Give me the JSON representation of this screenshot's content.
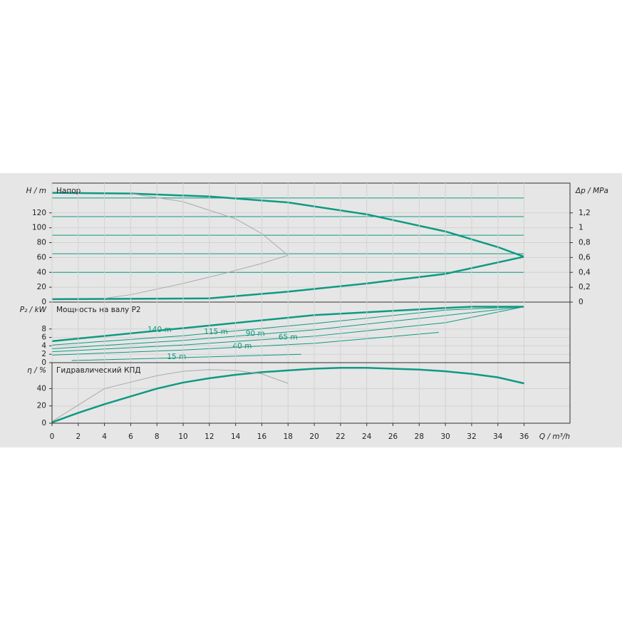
{
  "chart_data": [
    {
      "type": "line",
      "title": "Напор",
      "ylabel": "H / m",
      "y2label": "Δp / MPa",
      "xlim": [
        0,
        39.5
      ],
      "ylim": [
        0,
        160
      ],
      "yticks": [
        0,
        20,
        40,
        60,
        80,
        100,
        120
      ],
      "y2lim": [
        0,
        1.6
      ],
      "y2ticks": [
        0,
        {
          "value": 0.2,
          "label": "0,2"
        },
        {
          "value": 0.4,
          "label": "0,4"
        },
        {
          "value": 0.6,
          "label": "0,6"
        },
        {
          "value": 0.8,
          "label": "0,8"
        },
        {
          "value": 1,
          "label": "1"
        },
        {
          "value": 1.2,
          "label": "1,2"
        }
      ],
      "grid": true,
      "series": [
        {
          "color": "#0e9a82",
          "width": 2.5,
          "x": [
            0,
            6,
            12,
            18,
            24,
            30,
            34,
            36
          ],
          "values": [
            147,
            146,
            142,
            134,
            118,
            95,
            74,
            61
          ]
        },
        {
          "color": "#0e9a82",
          "width": 2.5,
          "x": [
            0,
            12,
            18,
            24,
            30,
            36
          ],
          "values": [
            4,
            5,
            14,
            25,
            38,
            61
          ]
        },
        {
          "color": "#0e9a82",
          "width": 1,
          "x": [
            0,
            36
          ],
          "values": [
            140,
            140
          ]
        },
        {
          "color": "#0e9a82",
          "width": 1,
          "x": [
            0,
            36
          ],
          "values": [
            115,
            115
          ]
        },
        {
          "color": "#0e9a82",
          "width": 1,
          "x": [
            0,
            36
          ],
          "values": [
            90,
            90
          ]
        },
        {
          "color": "#0e9a82",
          "width": 1,
          "x": [
            0,
            36
          ],
          "values": [
            65,
            65
          ]
        },
        {
          "color": "#0e9a82",
          "width": 1,
          "x": [
            0,
            36
          ],
          "values": [
            40,
            40
          ]
        },
        {
          "color": "#aaaaaa",
          "width": 1,
          "x": [
            6,
            10,
            14,
            16,
            18,
            16,
            13,
            10,
            6,
            4
          ],
          "values": [
            146,
            135,
            112,
            92,
            63,
            52,
            38,
            25,
            10,
            5
          ]
        }
      ]
    },
    {
      "type": "line",
      "title": "Мощность на валу P2",
      "ylabel": "P₂ / kW",
      "xlim": [
        0,
        39.5
      ],
      "ylim": [
        0,
        14.4
      ],
      "yticks": [
        0,
        2,
        4,
        6,
        8
      ],
      "grid": true,
      "series": [
        {
          "name": "140 m",
          "color": "#0e9a82",
          "width": 2.5,
          "x": [
            0,
            10,
            20,
            30,
            32,
            36
          ],
          "values": [
            5.1,
            8.2,
            11.3,
            13,
            13.3,
            13.3
          ]
        },
        {
          "name": "115 m",
          "color": "#0e9a82",
          "width": 1,
          "x": [
            0,
            10,
            20,
            30,
            36
          ],
          "values": [
            4.2,
            6.4,
            9.3,
            12.5,
            13.3
          ]
        },
        {
          "name": "90 m",
          "color": "#0e9a82",
          "width": 1,
          "x": [
            0,
            10,
            20,
            30,
            36
          ],
          "values": [
            3.3,
            5.3,
            7.8,
            11.2,
            13.3
          ]
        },
        {
          "name": "65 m",
          "color": "#0e9a82",
          "width": 1,
          "x": [
            0,
            10,
            20,
            30,
            36
          ],
          "values": [
            2.6,
            4.2,
            6.3,
            9.5,
            13.3
          ]
        },
        {
          "name": "40 m",
          "color": "#0e9a82",
          "width": 1,
          "x": [
            0,
            10,
            20,
            29.5
          ],
          "values": [
            1.8,
            3,
            4.6,
            7.2
          ]
        },
        {
          "name": "15 m",
          "color": "#0e9a82",
          "width": 1,
          "x": [
            1.5,
            10,
            19
          ],
          "values": [
            0.5,
            1.2,
            2
          ]
        }
      ]
    },
    {
      "type": "line",
      "title": "Гидравлический КПД",
      "ylabel": "η / %",
      "xlabel": "Q / m³/h",
      "xlim": [
        0,
        39.5
      ],
      "ylim": [
        0,
        70
      ],
      "yticks": [
        0,
        20,
        40
      ],
      "xticks": [
        0,
        2,
        4,
        6,
        8,
        10,
        12,
        14,
        16,
        18,
        20,
        22,
        24,
        26,
        28,
        30,
        32,
        34,
        36
      ],
      "grid": true,
      "series": [
        {
          "color": "#0e9a82",
          "width": 2.5,
          "x": [
            0,
            2,
            4,
            6,
            8,
            10,
            12,
            14,
            16,
            18,
            20,
            22,
            24,
            26,
            28,
            30,
            32,
            34,
            36
          ],
          "values": [
            1,
            12,
            22,
            31,
            40,
            47,
            52,
            56,
            59,
            61,
            63,
            64,
            64,
            63,
            62,
            60,
            57,
            53,
            46
          ]
        },
        {
          "color": "#aaaaaa",
          "width": 1,
          "x": [
            0,
            4,
            8,
            10,
            12,
            14,
            16,
            18
          ],
          "values": [
            2,
            40,
            55,
            60,
            62,
            61,
            57,
            46
          ]
        }
      ]
    }
  ]
}
